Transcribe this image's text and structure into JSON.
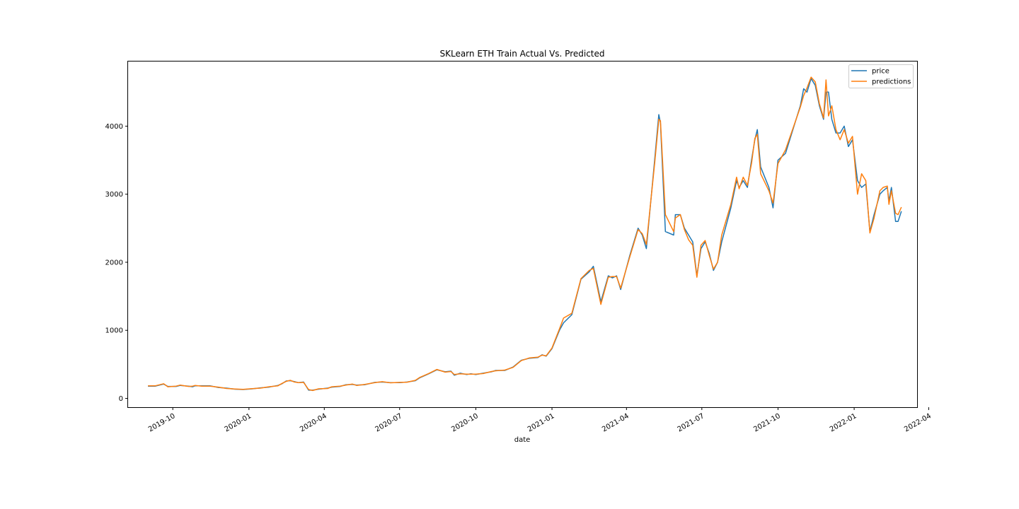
{
  "chart_data": {
    "type": "line",
    "title": "SKLearn ETH Train Actual Vs. Predicted",
    "xlabel": "date",
    "ylabel": "",
    "x_ticks": [
      "2019-10",
      "2020-01",
      "2020-04",
      "2020-07",
      "2020-10",
      "2021-01",
      "2021-04",
      "2021-07",
      "2021-10",
      "2022-01",
      "2022-04"
    ],
    "y_ticks": [
      0,
      1000,
      2000,
      3000,
      4000
    ],
    "xlim": [
      "2019-08-08",
      "2022-03-18"
    ],
    "ylim": [
      -130,
      4950
    ],
    "grid": false,
    "legend_position": "top-right",
    "colors": {
      "price": "#1f77b4",
      "predictions": "#ff7f0e"
    },
    "series": [
      {
        "name": "price",
        "points": [
          [
            "2019-09-01",
            180
          ],
          [
            "2019-09-10",
            180
          ],
          [
            "2019-09-20",
            210
          ],
          [
            "2019-09-25",
            175
          ],
          [
            "2019-10-05",
            175
          ],
          [
            "2019-10-10",
            190
          ],
          [
            "2019-10-20",
            180
          ],
          [
            "2019-10-25",
            170
          ],
          [
            "2019-10-28",
            185
          ],
          [
            "2019-11-05",
            185
          ],
          [
            "2019-11-15",
            185
          ],
          [
            "2019-11-25",
            160
          ],
          [
            "2019-12-05",
            150
          ],
          [
            "2019-12-15",
            135
          ],
          [
            "2019-12-25",
            130
          ],
          [
            "2020-01-05",
            140
          ],
          [
            "2020-01-15",
            155
          ],
          [
            "2020-01-25",
            165
          ],
          [
            "2020-02-05",
            190
          ],
          [
            "2020-02-10",
            215
          ],
          [
            "2020-02-15",
            255
          ],
          [
            "2020-02-20",
            260
          ],
          [
            "2020-02-25",
            245
          ],
          [
            "2020-03-01",
            230
          ],
          [
            "2020-03-07",
            240
          ],
          [
            "2020-03-13",
            120
          ],
          [
            "2020-03-18",
            120
          ],
          [
            "2020-03-25",
            135
          ],
          [
            "2020-04-05",
            150
          ],
          [
            "2020-04-10",
            165
          ],
          [
            "2020-04-20",
            175
          ],
          [
            "2020-04-27",
            200
          ],
          [
            "2020-05-05",
            205
          ],
          [
            "2020-05-10",
            195
          ],
          [
            "2020-05-20",
            200
          ],
          [
            "2020-06-01",
            235
          ],
          [
            "2020-06-10",
            240
          ],
          [
            "2020-06-20",
            230
          ],
          [
            "2020-07-01",
            230
          ],
          [
            "2020-07-10",
            240
          ],
          [
            "2020-07-20",
            260
          ],
          [
            "2020-07-25",
            300
          ],
          [
            "2020-08-05",
            360
          ],
          [
            "2020-08-15",
            420
          ],
          [
            "2020-08-25",
            390
          ],
          [
            "2020-09-01",
            400
          ],
          [
            "2020-09-05",
            340
          ],
          [
            "2020-09-12",
            370
          ],
          [
            "2020-09-20",
            350
          ],
          [
            "2020-09-25",
            360
          ],
          [
            "2020-10-01",
            350
          ],
          [
            "2020-10-10",
            370
          ],
          [
            "2020-10-20",
            390
          ],
          [
            "2020-10-25",
            410
          ],
          [
            "2020-11-05",
            410
          ],
          [
            "2020-11-15",
            460
          ],
          [
            "2020-11-25",
            560
          ],
          [
            "2020-12-05",
            590
          ],
          [
            "2020-12-15",
            600
          ],
          [
            "2020-12-20",
            640
          ],
          [
            "2020-12-25",
            620
          ],
          [
            "2021-01-01",
            730
          ],
          [
            "2021-01-10",
            1000
          ],
          [
            "2021-01-15",
            1110
          ],
          [
            "2021-01-25",
            1230
          ],
          [
            "2021-02-05",
            1750
          ],
          [
            "2021-02-15",
            1860
          ],
          [
            "2021-02-20",
            1940
          ],
          [
            "2021-03-01",
            1420
          ],
          [
            "2021-03-10",
            1800
          ],
          [
            "2021-03-15",
            1770
          ],
          [
            "2021-03-20",
            1800
          ],
          [
            "2021-03-25",
            1600
          ],
          [
            "2021-04-05",
            2100
          ],
          [
            "2021-04-15",
            2500
          ],
          [
            "2021-04-20",
            2400
          ],
          [
            "2021-04-25",
            2200
          ],
          [
            "2021-05-05",
            3500
          ],
          [
            "2021-05-10",
            4170
          ],
          [
            "2021-05-12",
            4050
          ],
          [
            "2021-05-18",
            2450
          ],
          [
            "2021-05-28",
            2400
          ],
          [
            "2021-05-30",
            2700
          ],
          [
            "2021-06-05",
            2700
          ],
          [
            "2021-06-10",
            2500
          ],
          [
            "2021-06-15",
            2400
          ],
          [
            "2021-06-20",
            2300
          ],
          [
            "2021-06-25",
            1800
          ],
          [
            "2021-06-30",
            2200
          ],
          [
            "2021-07-05",
            2300
          ],
          [
            "2021-07-10",
            2130
          ],
          [
            "2021-07-15",
            1880
          ],
          [
            "2021-07-20",
            2000
          ],
          [
            "2021-07-25",
            2300
          ],
          [
            "2021-08-05",
            2800
          ],
          [
            "2021-08-12",
            3200
          ],
          [
            "2021-08-15",
            3100
          ],
          [
            "2021-08-20",
            3200
          ],
          [
            "2021-08-25",
            3100
          ],
          [
            "2021-08-30",
            3500
          ],
          [
            "2021-09-03",
            3800
          ],
          [
            "2021-09-06",
            3950
          ],
          [
            "2021-09-10",
            3400
          ],
          [
            "2021-09-20",
            3100
          ],
          [
            "2021-09-25",
            2800
          ],
          [
            "2021-10-01",
            3500
          ],
          [
            "2021-10-10",
            3600
          ],
          [
            "2021-10-28",
            4300
          ],
          [
            "2021-11-01",
            4550
          ],
          [
            "2021-11-05",
            4500
          ],
          [
            "2021-11-10",
            4700
          ],
          [
            "2021-11-15",
            4600
          ],
          [
            "2021-11-20",
            4300
          ],
          [
            "2021-11-25",
            4100
          ],
          [
            "2021-11-28",
            4500
          ],
          [
            "2021-12-01",
            4500
          ],
          [
            "2021-12-05",
            4100
          ],
          [
            "2021-12-10",
            3900
          ],
          [
            "2021-12-15",
            3900
          ],
          [
            "2021-12-20",
            4000
          ],
          [
            "2021-12-25",
            3700
          ],
          [
            "2021-12-30",
            3800
          ],
          [
            "2022-01-05",
            3200
          ],
          [
            "2022-01-10",
            3100
          ],
          [
            "2022-01-15",
            3150
          ],
          [
            "2022-01-20",
            2450
          ],
          [
            "2022-01-25",
            2700
          ],
          [
            "2022-02-01",
            3000
          ],
          [
            "2022-02-05",
            3050
          ],
          [
            "2022-02-10",
            3100
          ],
          [
            "2022-02-12",
            2900
          ],
          [
            "2022-02-15",
            3100
          ],
          [
            "2022-02-20",
            2600
          ],
          [
            "2022-02-23",
            2600
          ],
          [
            "2022-02-27",
            2750
          ]
        ]
      },
      {
        "name": "predictions",
        "points": [
          [
            "2019-09-01",
            185
          ],
          [
            "2019-09-10",
            185
          ],
          [
            "2019-09-20",
            215
          ],
          [
            "2019-09-25",
            170
          ],
          [
            "2019-10-05",
            180
          ],
          [
            "2019-10-10",
            195
          ],
          [
            "2019-10-20",
            175
          ],
          [
            "2019-10-25",
            180
          ],
          [
            "2019-10-28",
            190
          ],
          [
            "2019-11-05",
            180
          ],
          [
            "2019-11-15",
            180
          ],
          [
            "2019-11-25",
            165
          ],
          [
            "2019-12-05",
            145
          ],
          [
            "2019-12-15",
            138
          ],
          [
            "2019-12-25",
            132
          ],
          [
            "2020-01-05",
            143
          ],
          [
            "2020-01-15",
            150
          ],
          [
            "2020-01-25",
            170
          ],
          [
            "2020-02-05",
            185
          ],
          [
            "2020-02-10",
            220
          ],
          [
            "2020-02-15",
            250
          ],
          [
            "2020-02-20",
            265
          ],
          [
            "2020-02-25",
            240
          ],
          [
            "2020-03-01",
            232
          ],
          [
            "2020-03-07",
            235
          ],
          [
            "2020-03-13",
            130
          ],
          [
            "2020-03-18",
            115
          ],
          [
            "2020-03-25",
            140
          ],
          [
            "2020-04-05",
            145
          ],
          [
            "2020-04-10",
            170
          ],
          [
            "2020-04-20",
            180
          ],
          [
            "2020-04-27",
            195
          ],
          [
            "2020-05-05",
            210
          ],
          [
            "2020-05-10",
            190
          ],
          [
            "2020-05-20",
            205
          ],
          [
            "2020-06-01",
            230
          ],
          [
            "2020-06-10",
            245
          ],
          [
            "2020-06-20",
            228
          ],
          [
            "2020-07-01",
            235
          ],
          [
            "2020-07-10",
            238
          ],
          [
            "2020-07-20",
            265
          ],
          [
            "2020-07-25",
            305
          ],
          [
            "2020-08-05",
            365
          ],
          [
            "2020-08-15",
            425
          ],
          [
            "2020-08-25",
            385
          ],
          [
            "2020-09-01",
            395
          ],
          [
            "2020-09-05",
            350
          ],
          [
            "2020-09-12",
            360
          ],
          [
            "2020-09-20",
            355
          ],
          [
            "2020-09-25",
            355
          ],
          [
            "2020-10-01",
            355
          ],
          [
            "2020-10-10",
            365
          ],
          [
            "2020-10-20",
            395
          ],
          [
            "2020-10-25",
            405
          ],
          [
            "2020-11-05",
            415
          ],
          [
            "2020-11-15",
            455
          ],
          [
            "2020-11-25",
            555
          ],
          [
            "2020-12-05",
            595
          ],
          [
            "2020-12-15",
            605
          ],
          [
            "2020-12-20",
            635
          ],
          [
            "2020-12-25",
            625
          ],
          [
            "2021-01-01",
            740
          ],
          [
            "2021-01-10",
            1020
          ],
          [
            "2021-01-15",
            1180
          ],
          [
            "2021-01-25",
            1250
          ],
          [
            "2021-02-05",
            1760
          ],
          [
            "2021-02-15",
            1880
          ],
          [
            "2021-02-20",
            1910
          ],
          [
            "2021-03-01",
            1380
          ],
          [
            "2021-03-10",
            1780
          ],
          [
            "2021-03-15",
            1790
          ],
          [
            "2021-03-20",
            1790
          ],
          [
            "2021-03-25",
            1620
          ],
          [
            "2021-04-05",
            2080
          ],
          [
            "2021-04-15",
            2480
          ],
          [
            "2021-04-20",
            2420
          ],
          [
            "2021-04-25",
            2260
          ],
          [
            "2021-05-05",
            3450
          ],
          [
            "2021-05-10",
            4100
          ],
          [
            "2021-05-12",
            4080
          ],
          [
            "2021-05-18",
            2700
          ],
          [
            "2021-05-28",
            2450
          ],
          [
            "2021-05-30",
            2650
          ],
          [
            "2021-06-05",
            2700
          ],
          [
            "2021-06-10",
            2480
          ],
          [
            "2021-06-15",
            2330
          ],
          [
            "2021-06-20",
            2250
          ],
          [
            "2021-06-25",
            1780
          ],
          [
            "2021-06-30",
            2250
          ],
          [
            "2021-07-05",
            2320
          ],
          [
            "2021-07-10",
            2100
          ],
          [
            "2021-07-15",
            1900
          ],
          [
            "2021-07-20",
            2000
          ],
          [
            "2021-07-25",
            2400
          ],
          [
            "2021-08-05",
            2850
          ],
          [
            "2021-08-12",
            3250
          ],
          [
            "2021-08-15",
            3080
          ],
          [
            "2021-08-20",
            3250
          ],
          [
            "2021-08-25",
            3130
          ],
          [
            "2021-08-30",
            3450
          ],
          [
            "2021-09-03",
            3820
          ],
          [
            "2021-09-06",
            3880
          ],
          [
            "2021-09-10",
            3300
          ],
          [
            "2021-09-20",
            3050
          ],
          [
            "2021-09-25",
            2870
          ],
          [
            "2021-10-01",
            3450
          ],
          [
            "2021-10-10",
            3650
          ],
          [
            "2021-10-28",
            4280
          ],
          [
            "2021-11-01",
            4450
          ],
          [
            "2021-11-05",
            4560
          ],
          [
            "2021-11-10",
            4720
          ],
          [
            "2021-11-15",
            4650
          ],
          [
            "2021-11-20",
            4330
          ],
          [
            "2021-11-25",
            4120
          ],
          [
            "2021-11-28",
            4680
          ],
          [
            "2021-12-01",
            4150
          ],
          [
            "2021-12-05",
            4300
          ],
          [
            "2021-12-10",
            3950
          ],
          [
            "2021-12-15",
            3800
          ],
          [
            "2021-12-20",
            3950
          ],
          [
            "2021-12-25",
            3750
          ],
          [
            "2021-12-30",
            3850
          ],
          [
            "2022-01-05",
            3000
          ],
          [
            "2022-01-10",
            3300
          ],
          [
            "2022-01-15",
            3200
          ],
          [
            "2022-01-20",
            2430
          ],
          [
            "2022-01-25",
            2650
          ],
          [
            "2022-02-01",
            3050
          ],
          [
            "2022-02-05",
            3100
          ],
          [
            "2022-02-10",
            3120
          ],
          [
            "2022-02-12",
            2850
          ],
          [
            "2022-02-15",
            3050
          ],
          [
            "2022-02-20",
            2720
          ],
          [
            "2022-02-23",
            2700
          ],
          [
            "2022-02-27",
            2810
          ]
        ]
      }
    ]
  }
}
